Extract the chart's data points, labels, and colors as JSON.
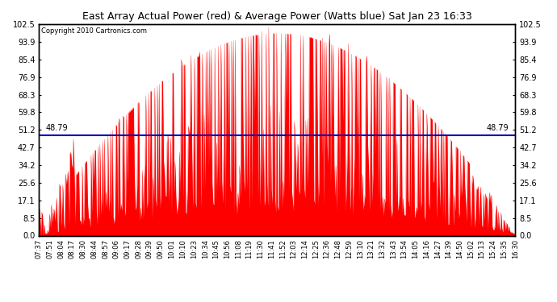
{
  "title": "East Array Actual Power (red) & Average Power (Watts blue) Sat Jan 23 16:33",
  "copyright": "Copyright 2010 Cartronics.com",
  "average_value": 48.79,
  "yticks": [
    0.0,
    8.5,
    17.1,
    25.6,
    34.2,
    42.7,
    51.2,
    59.8,
    68.3,
    76.9,
    85.4,
    93.9,
    102.5
  ],
  "ymax": 102.5,
  "ymin": 0.0,
  "bar_color": "#FF0000",
  "avg_line_color": "#0000BB",
  "bg_color": "#FFFFFF",
  "plot_bg_color": "#FFFFFF",
  "grid_color": "#AAAAAA",
  "border_color": "#000000",
  "xtick_labels": [
    "07:37",
    "07:51",
    "08:04",
    "08:17",
    "08:30",
    "08:44",
    "08:57",
    "09:06",
    "09:17",
    "09:28",
    "09:39",
    "09:50",
    "10:01",
    "10:10",
    "10:23",
    "10:34",
    "10:45",
    "10:56",
    "11:08",
    "11:19",
    "11:30",
    "11:41",
    "11:52",
    "12:03",
    "12:14",
    "12:25",
    "12:36",
    "12:48",
    "12:59",
    "13:10",
    "13:21",
    "13:32",
    "13:43",
    "13:54",
    "14:05",
    "14:16",
    "14:27",
    "14:39",
    "14:50",
    "15:02",
    "15:13",
    "15:24",
    "15:35",
    "16:30"
  ]
}
